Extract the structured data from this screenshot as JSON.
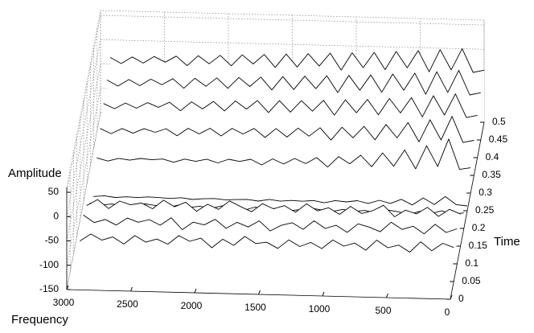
{
  "chart_data": {
    "type": "waterfall",
    "xlabel": "Frequency",
    "ylabel": "Time",
    "zlabel": "Amplitude",
    "x_reversed": true,
    "grid": true,
    "color": "#000000",
    "xlim": [
      0,
      3000
    ],
    "xticks": [
      0,
      500,
      1000,
      1500,
      2000,
      2500,
      3000
    ],
    "ylim": [
      0,
      0.5
    ],
    "yticks": [
      0,
      0.05,
      0.1,
      0.15,
      0.2,
      0.25,
      0.3,
      0.35,
      0.4,
      0.45,
      0.5
    ],
    "zlim": [
      -150,
      60
    ],
    "zticks": [
      -150,
      -100,
      -50,
      0,
      50
    ],
    "x": [
      0,
      86,
      172,
      258,
      344,
      430,
      516,
      602,
      688,
      774,
      860,
      946,
      1032,
      1118,
      1204,
      1290,
      1376,
      1462,
      1548,
      1634,
      1720,
      1806,
      1892,
      1978,
      2064,
      2150,
      2236,
      2322,
      2408,
      2494,
      2580,
      2666,
      2752,
      2838,
      2924
    ],
    "traces": [
      {
        "time": 0.5,
        "values": [
          -43,
          -48,
          0,
          -44,
          -3,
          -49,
          -6,
          -42,
          -9,
          -47,
          -12,
          -44,
          -14,
          -50,
          -16,
          -43,
          -18,
          -46,
          -20,
          -48,
          -22,
          -42,
          -24,
          -47,
          -26,
          -44,
          -28,
          -49,
          -30,
          -43,
          -32,
          -46,
          -34,
          -48,
          -36
        ]
      },
      {
        "time": 0.45,
        "values": [
          -53,
          -58,
          -8,
          -54,
          -12,
          -59,
          -16,
          -52,
          -19,
          -57,
          -22,
          -54,
          -24,
          -60,
          -26,
          -53,
          -28,
          -56,
          -30,
          -58,
          -32,
          -52,
          -34,
          -57,
          -36,
          -54,
          -38,
          -59,
          -40,
          -53,
          -42,
          -56,
          -44,
          -58,
          -46
        ]
      },
      {
        "time": 0.4,
        "values": [
          -63,
          -68,
          -20,
          -64,
          -25,
          -69,
          -30,
          -62,
          -33,
          -67,
          -36,
          -64,
          -38,
          -70,
          -40,
          -63,
          -42,
          -66,
          -43,
          -68,
          -44,
          -62,
          -46,
          -67,
          -48,
          -64,
          -50,
          -69,
          -52,
          -63,
          -54,
          -66,
          -56,
          -68,
          -58
        ]
      },
      {
        "time": 0.35,
        "values": [
          -78,
          -83,
          -30,
          -79,
          -38,
          -84,
          -45,
          -77,
          -50,
          -82,
          -55,
          -79,
          -58,
          -85,
          -60,
          -78,
          -62,
          -81,
          -64,
          -83,
          -65,
          -77,
          -66,
          -82,
          -67,
          -79,
          -68,
          -84,
          -70,
          -78,
          -71,
          -81,
          -72,
          -83,
          -73
        ]
      },
      {
        "time": 0.3,
        "values": [
          -98,
          -102,
          -40,
          -97,
          -55,
          -103,
          -65,
          -99,
          -72,
          -101,
          -78,
          -96,
          -82,
          -104,
          -85,
          -98,
          -88,
          -100,
          -90,
          -103,
          -92,
          -97,
          -93,
          -101,
          -94,
          -99,
          -95,
          -102,
          -96,
          -98,
          -96,
          -100,
          -97,
          -103,
          -97
        ]
      },
      {
        "time": 0.25,
        "values": [
          -140,
          -138,
          -122,
          -139,
          -126,
          -141,
          -130,
          -139,
          -133,
          -140,
          -135,
          -138,
          -136,
          -141,
          -137,
          -139,
          -138,
          -140,
          -137,
          -141,
          -138,
          -139,
          -140,
          -138,
          -139,
          -141,
          -138,
          -140,
          -139,
          -138,
          -140,
          -139,
          -141,
          -138,
          -140
        ]
      },
      {
        "time": 0.2,
        "values": [
          -118,
          -122,
          -115,
          -121,
          -117,
          -124,
          -119,
          -116,
          -123,
          -118,
          -121,
          -117,
          -122,
          -119,
          -116,
          -120,
          -123,
          -118,
          -121,
          -117,
          -124,
          -119,
          -116,
          -122,
          -118,
          -121,
          -117,
          -123,
          -119,
          -116,
          -120,
          -122,
          -118,
          -121,
          -117
        ]
      },
      {
        "time": 0.15,
        "values": [
          -84,
          -75,
          -90,
          -72,
          -86,
          -79,
          -93,
          -70,
          -82,
          -88,
          -74,
          -91,
          -78,
          -85,
          -71,
          -89,
          -76,
          -83,
          -73,
          -90,
          -80,
          -69,
          -87,
          -77,
          -92,
          -74,
          -84,
          -71,
          -89,
          -78,
          -82,
          -75,
          -91,
          -73,
          -86
        ]
      },
      {
        "time": 0.1,
        "values": [
          -78,
          -86,
          -70,
          -90,
          -75,
          -82,
          -68,
          -88,
          -79,
          -73,
          -91,
          -77,
          -84,
          -69,
          -87,
          -74,
          -80,
          -92,
          -72,
          -85,
          -76,
          -89,
          -71,
          -83,
          -78,
          -94,
          -70,
          -86,
          -75,
          -81,
          -73,
          -88,
          -77,
          -84,
          -69
        ]
      },
      {
        "time": 0.05,
        "values": [
          -80,
          -72,
          -88,
          -70,
          -92,
          -78,
          -84,
          -69,
          -90,
          -76,
          -83,
          -71,
          -89,
          -77,
          -86,
          -73,
          -91,
          -79,
          -82,
          -68,
          -87,
          -75,
          -93,
          -74,
          -81,
          -70,
          -88,
          -78,
          -85,
          -72,
          -90,
          -76,
          -83,
          -71,
          -86
        ]
      }
    ]
  }
}
